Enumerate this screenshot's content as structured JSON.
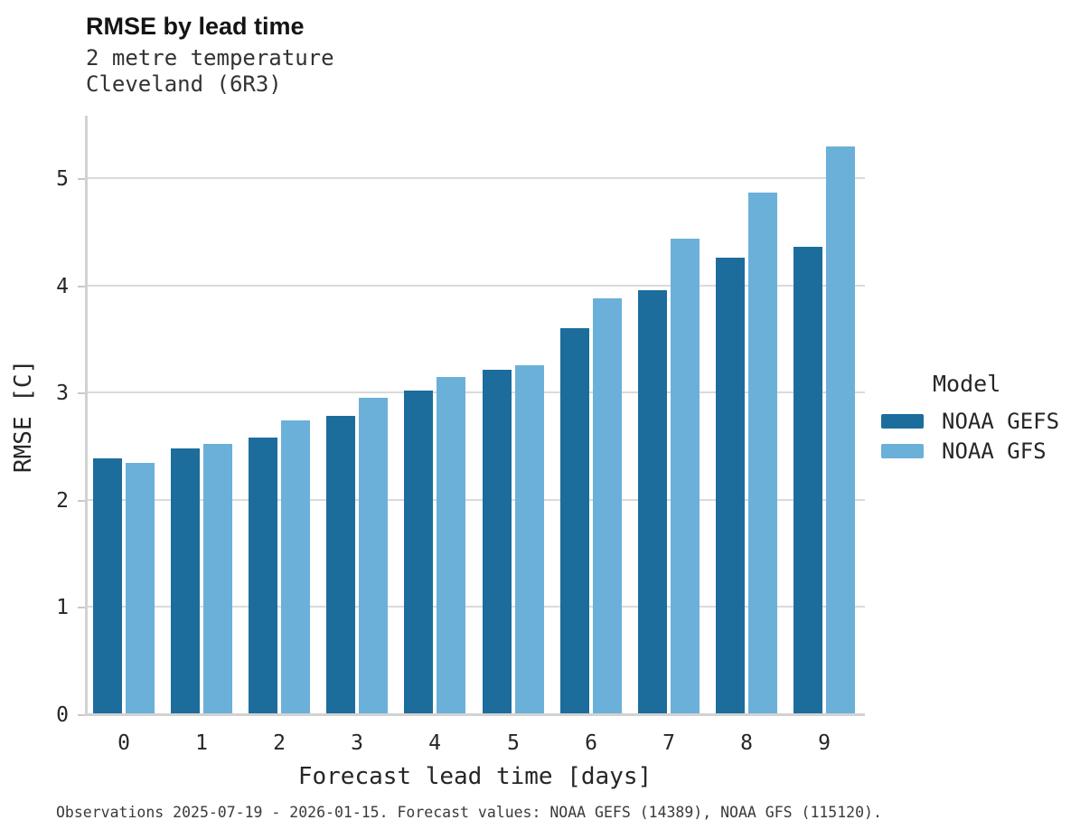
{
  "chart_data": {
    "type": "bar",
    "title": "RMSE by lead time",
    "subtitle_lines": [
      "2 metre temperature",
      "Cleveland (6R3)"
    ],
    "xlabel": "Forecast lead time [days]",
    "ylabel": "RMSE [C]",
    "categories": [
      "0",
      "1",
      "2",
      "3",
      "4",
      "5",
      "6",
      "7",
      "8",
      "9"
    ],
    "series": [
      {
        "name": "NOAA GEFS",
        "color": "#1c6d9c",
        "values": [
          2.4,
          2.5,
          2.6,
          2.8,
          3.04,
          3.23,
          3.62,
          3.97,
          4.28,
          4.38
        ]
      },
      {
        "name": "NOAA GFS",
        "color": "#6bb0d9",
        "values": [
          2.36,
          2.54,
          2.76,
          2.97,
          3.16,
          3.27,
          3.9,
          4.45,
          4.88,
          5.31
        ]
      }
    ],
    "ylim": [
      0,
      5.6
    ],
    "yticks": [
      0,
      1,
      2,
      3,
      4,
      5
    ],
    "grid": "horizontal",
    "legend": {
      "title": "Model",
      "position": "right"
    },
    "caption": "Observations 2025-07-19 - 2026-01-15. Forecast values: NOAA GEFS (14389), NOAA GFS (115120)."
  },
  "style_colors": {
    "grid": "#dadada",
    "spine": "#d2d2d2",
    "tick": "#c9c9c9",
    "text": "#262626"
  }
}
